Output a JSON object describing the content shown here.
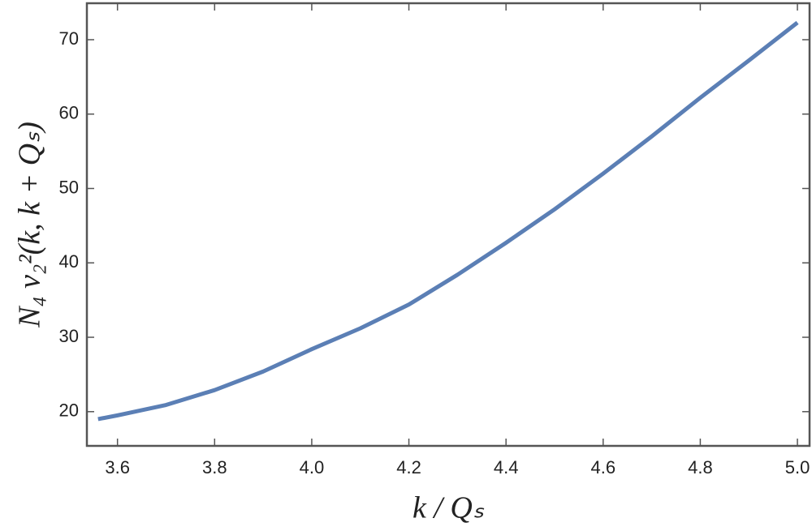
{
  "chart_data": {
    "type": "line",
    "x_label": "k / Qₛ",
    "y_label": "N₄ v₂²(k, k + Qₛ)",
    "x": [
      3.56,
      3.6,
      3.7,
      3.8,
      3.9,
      4.0,
      4.1,
      4.2,
      4.3,
      4.4,
      4.5,
      4.6,
      4.7,
      4.8,
      4.9,
      5.0
    ],
    "series": [
      {
        "color": "#5b7fb5",
        "values": [
          19.0,
          19.5,
          20.9,
          22.9,
          25.4,
          28.4,
          31.2,
          34.4,
          38.4,
          42.7,
          47.2,
          52.0,
          57.0,
          62.2,
          67.2,
          72.3
        ]
      }
    ],
    "xlim": [
      3.537,
      5.025
    ],
    "ylim": [
      15.4,
      74.9
    ],
    "xticks": [
      3.6,
      3.8,
      {
        "value": 4,
        "label": "4.0"
      },
      4.2,
      4.4,
      4.6,
      4.8,
      {
        "value": 5,
        "label": "5.0"
      }
    ],
    "yticks": [
      20,
      30,
      40,
      50,
      60,
      70
    ]
  }
}
